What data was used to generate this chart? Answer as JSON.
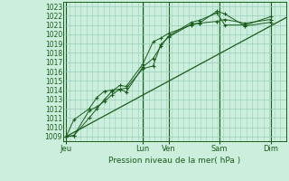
{
  "background_color": "#cceedd",
  "grid_color": "#99ccbb",
  "line_color": "#1a5c1a",
  "text_color": "#1a5c1a",
  "xlabel_text": "Pression niveau de la mer( hPa )",
  "ylim": [
    1008.5,
    1023.5
  ],
  "yticks": [
    1009,
    1010,
    1011,
    1012,
    1013,
    1014,
    1015,
    1016,
    1017,
    1018,
    1019,
    1020,
    1021,
    1022,
    1023
  ],
  "xtick_labels": [
    "Jeu",
    "Lun",
    "Ven",
    "Sam",
    "Dim"
  ],
  "xtick_positions": [
    0.0,
    3.0,
    4.0,
    6.0,
    8.0
  ],
  "xmin": -0.1,
  "xmax": 8.6,
  "x_positions": [
    0.0,
    0.3,
    0.9,
    1.2,
    1.5,
    1.8,
    2.1,
    2.35,
    3.0,
    3.4,
    3.7,
    4.0,
    4.9,
    5.2,
    5.9,
    6.2,
    7.0,
    8.0
  ],
  "line1": [
    1009.0,
    1009.1,
    1011.8,
    1012.2,
    1012.8,
    1013.5,
    1014.1,
    1014.2,
    1016.3,
    1016.6,
    1018.9,
    1019.7,
    1021.1,
    1021.2,
    1022.5,
    1022.2,
    1020.9,
    1021.3
  ],
  "line2": [
    1009.0,
    1010.8,
    1012.0,
    1013.2,
    1013.9,
    1014.0,
    1014.1,
    1013.8,
    1016.5,
    1017.4,
    1018.7,
    1019.8,
    1021.3,
    1021.5,
    1022.3,
    1021.0,
    1021.0,
    1021.9
  ],
  "line3": [
    1009.0,
    1009.1,
    1011.0,
    1012.0,
    1013.0,
    1013.9,
    1014.5,
    1014.4,
    1016.8,
    1019.2,
    1019.6,
    1020.1,
    1021.0,
    1021.2,
    1021.4,
    1021.6,
    1021.2,
    1021.6
  ],
  "trend_x": [
    0.0,
    8.6
  ],
  "trend_y": [
    1009.0,
    1021.8
  ]
}
